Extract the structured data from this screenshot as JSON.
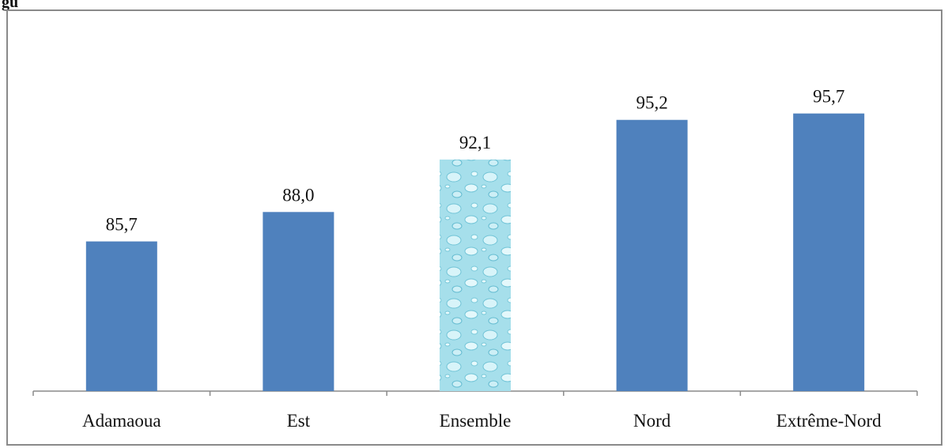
{
  "figure": {
    "caption": "gu"
  },
  "chart_data": {
    "type": "bar",
    "title": "",
    "xlabel": "",
    "ylabel": "",
    "categories": [
      "Adamaoua",
      "Est",
      "Ensemble",
      "Nord",
      "Extrême-Nord"
    ],
    "values": [
      85.7,
      88.0,
      92.1,
      95.2,
      95.7
    ],
    "value_labels": [
      "85,7",
      "88,0",
      "92,1",
      "95,2",
      "95,7"
    ],
    "highlighted_category": "Ensemble",
    "ylim": [
      74,
      100
    ],
    "grid": false,
    "legend": "none",
    "colors": {
      "bar": "#4f81bd",
      "highlight_base": "#9fdcea",
      "highlight_light": "#d6f3f8",
      "axis": "#8a8a8a"
    }
  }
}
